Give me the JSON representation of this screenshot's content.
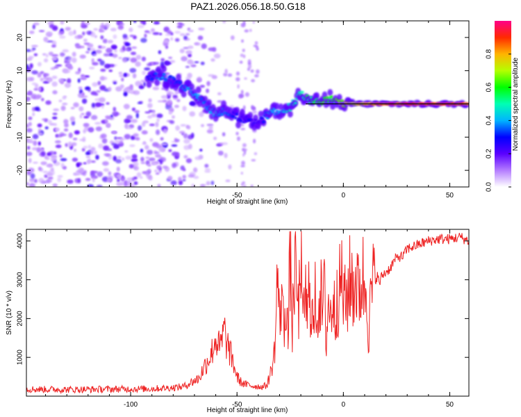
{
  "figure": {
    "title": "PAZ1.2026.056.18.50.G18"
  },
  "chart_data": [
    {
      "type": "heatmap",
      "name": "spectrogram",
      "xlabel": "Height of straight line (km)",
      "ylabel": "Frequency (Hz)",
      "xlim": [
        -149,
        59
      ],
      "ylim": [
        -25,
        25
      ],
      "xticks": [
        -100,
        -50,
        0,
        50
      ],
      "yticks": [
        -20,
        -10,
        0,
        10,
        20
      ],
      "xtick_labels": [
        "-100",
        "-50",
        "0",
        "50"
      ],
      "ytick_labels": [
        "-20",
        "-10",
        "0",
        "10",
        "20"
      ],
      "colorbar": {
        "label": "Normalized spectral amplitude",
        "range": [
          0,
          1
        ],
        "ticks": [
          0.0,
          0.2,
          0.4,
          0.6,
          0.8
        ],
        "tick_labels": [
          "0.0",
          "0.2",
          "0.4",
          "0.6",
          "0.8"
        ]
      },
      "ridge": [
        {
          "x": -92,
          "f": 8,
          "amp": 0.3
        },
        {
          "x": -85,
          "f": 8.5,
          "amp": 0.4
        },
        {
          "x": -80,
          "f": 7,
          "amp": 0.35
        },
        {
          "x": -75,
          "f": 5,
          "amp": 0.4
        },
        {
          "x": -70,
          "f": 3,
          "amp": 0.45
        },
        {
          "x": -65,
          "f": 0,
          "amp": 0.4
        },
        {
          "x": -60,
          "f": -3,
          "amp": 0.45
        },
        {
          "x": -55,
          "f": -2,
          "amp": 0.4
        },
        {
          "x": -50,
          "f": -4,
          "amp": 0.3
        },
        {
          "x": -45,
          "f": -5,
          "amp": 0.3
        },
        {
          "x": -40,
          "f": -6,
          "amp": 0.25
        },
        {
          "x": -35,
          "f": -3,
          "amp": 0.45
        },
        {
          "x": -30,
          "f": -2,
          "amp": 0.4
        },
        {
          "x": -25,
          "f": -1,
          "amp": 0.5
        },
        {
          "x": -20,
          "f": 3,
          "amp": 0.55
        },
        {
          "x": -15,
          "f": 1,
          "amp": 0.6
        },
        {
          "x": -10,
          "f": 0.5,
          "amp": 0.65
        },
        {
          "x": -5,
          "f": 1.5,
          "amp": 0.6
        },
        {
          "x": 0,
          "f": 0,
          "amp": 0.75
        },
        {
          "x": 5,
          "f": 0,
          "amp": 0.8
        },
        {
          "x": 10,
          "f": 0,
          "amp": 0.85
        },
        {
          "x": 20,
          "f": 0,
          "amp": 0.95
        },
        {
          "x": 30,
          "f": 0,
          "amp": 0.97
        },
        {
          "x": 40,
          "f": 0,
          "amp": 0.97
        },
        {
          "x": 50,
          "f": 0,
          "amp": 0.97
        },
        {
          "x": 59,
          "f": 0,
          "amp": 0.97
        }
      ]
    },
    {
      "type": "line",
      "name": "snr",
      "xlabel": "Height of straight line (km)",
      "ylabel": "SNR (10 * v/v)",
      "xlim": [
        -149,
        59
      ],
      "ylim": [
        0,
        4300
      ],
      "xticks": [
        -100,
        -50,
        0,
        50
      ],
      "yticks": [
        1000,
        2000,
        3000,
        4000
      ],
      "xtick_labels": [
        "-100",
        "-50",
        "0",
        "50"
      ],
      "ytick_labels": [
        "1000",
        "2000",
        "3000",
        "4000"
      ],
      "series": [
        {
          "name": "SNR",
          "color": "#ee2222",
          "x": [
            -149,
            -130,
            -110,
            -90,
            -80,
            -75,
            -70,
            -68,
            -65,
            -62,
            -60,
            -58,
            -56,
            -55,
            -52,
            -50,
            -48,
            -46,
            -44,
            -42,
            -40,
            -38,
            -36,
            -35,
            -34,
            -33,
            -32,
            -31,
            -30,
            -29,
            -28,
            -27,
            -26,
            -25,
            -24,
            -23,
            -22,
            -21,
            -20,
            -19,
            -18,
            -17,
            -16,
            -15,
            -14,
            -13,
            -12,
            -11,
            -10,
            -9,
            -8,
            -7,
            -6,
            -5,
            -4,
            -3,
            -2,
            -1,
            0,
            1,
            2,
            3,
            4,
            5,
            6,
            7,
            8,
            9,
            10,
            11,
            12,
            13,
            14,
            15,
            16,
            17,
            18,
            20,
            22,
            24,
            26,
            28,
            30,
            35,
            40,
            45,
            50,
            55,
            59
          ],
          "y": [
            180,
            170,
            180,
            190,
            220,
            250,
            400,
            450,
            800,
            1100,
            1500,
            1200,
            1700,
            1400,
            900,
            500,
            350,
            300,
            280,
            260,
            250,
            240,
            280,
            450,
            650,
            900,
            1400,
            3300,
            1800,
            3000,
            1500,
            2900,
            1400,
            3800,
            1700,
            3300,
            2800,
            2000,
            4200,
            1500,
            3000,
            1800,
            2900,
            2400,
            1600,
            2700,
            2000,
            2900,
            2100,
            2700,
            1500,
            2500,
            2000,
            2700,
            2000,
            2800,
            2600,
            3100,
            2600,
            2300,
            2700,
            2900,
            3000,
            2800,
            3100,
            2600,
            2900,
            3100,
            2700,
            3200,
            1400,
            2700,
            2800,
            3000,
            3100,
            2900,
            3100,
            3200,
            3300,
            3500,
            3600,
            3600,
            3800,
            3900,
            4000,
            4050,
            4050,
            4100,
            4000
          ]
        }
      ]
    }
  ]
}
